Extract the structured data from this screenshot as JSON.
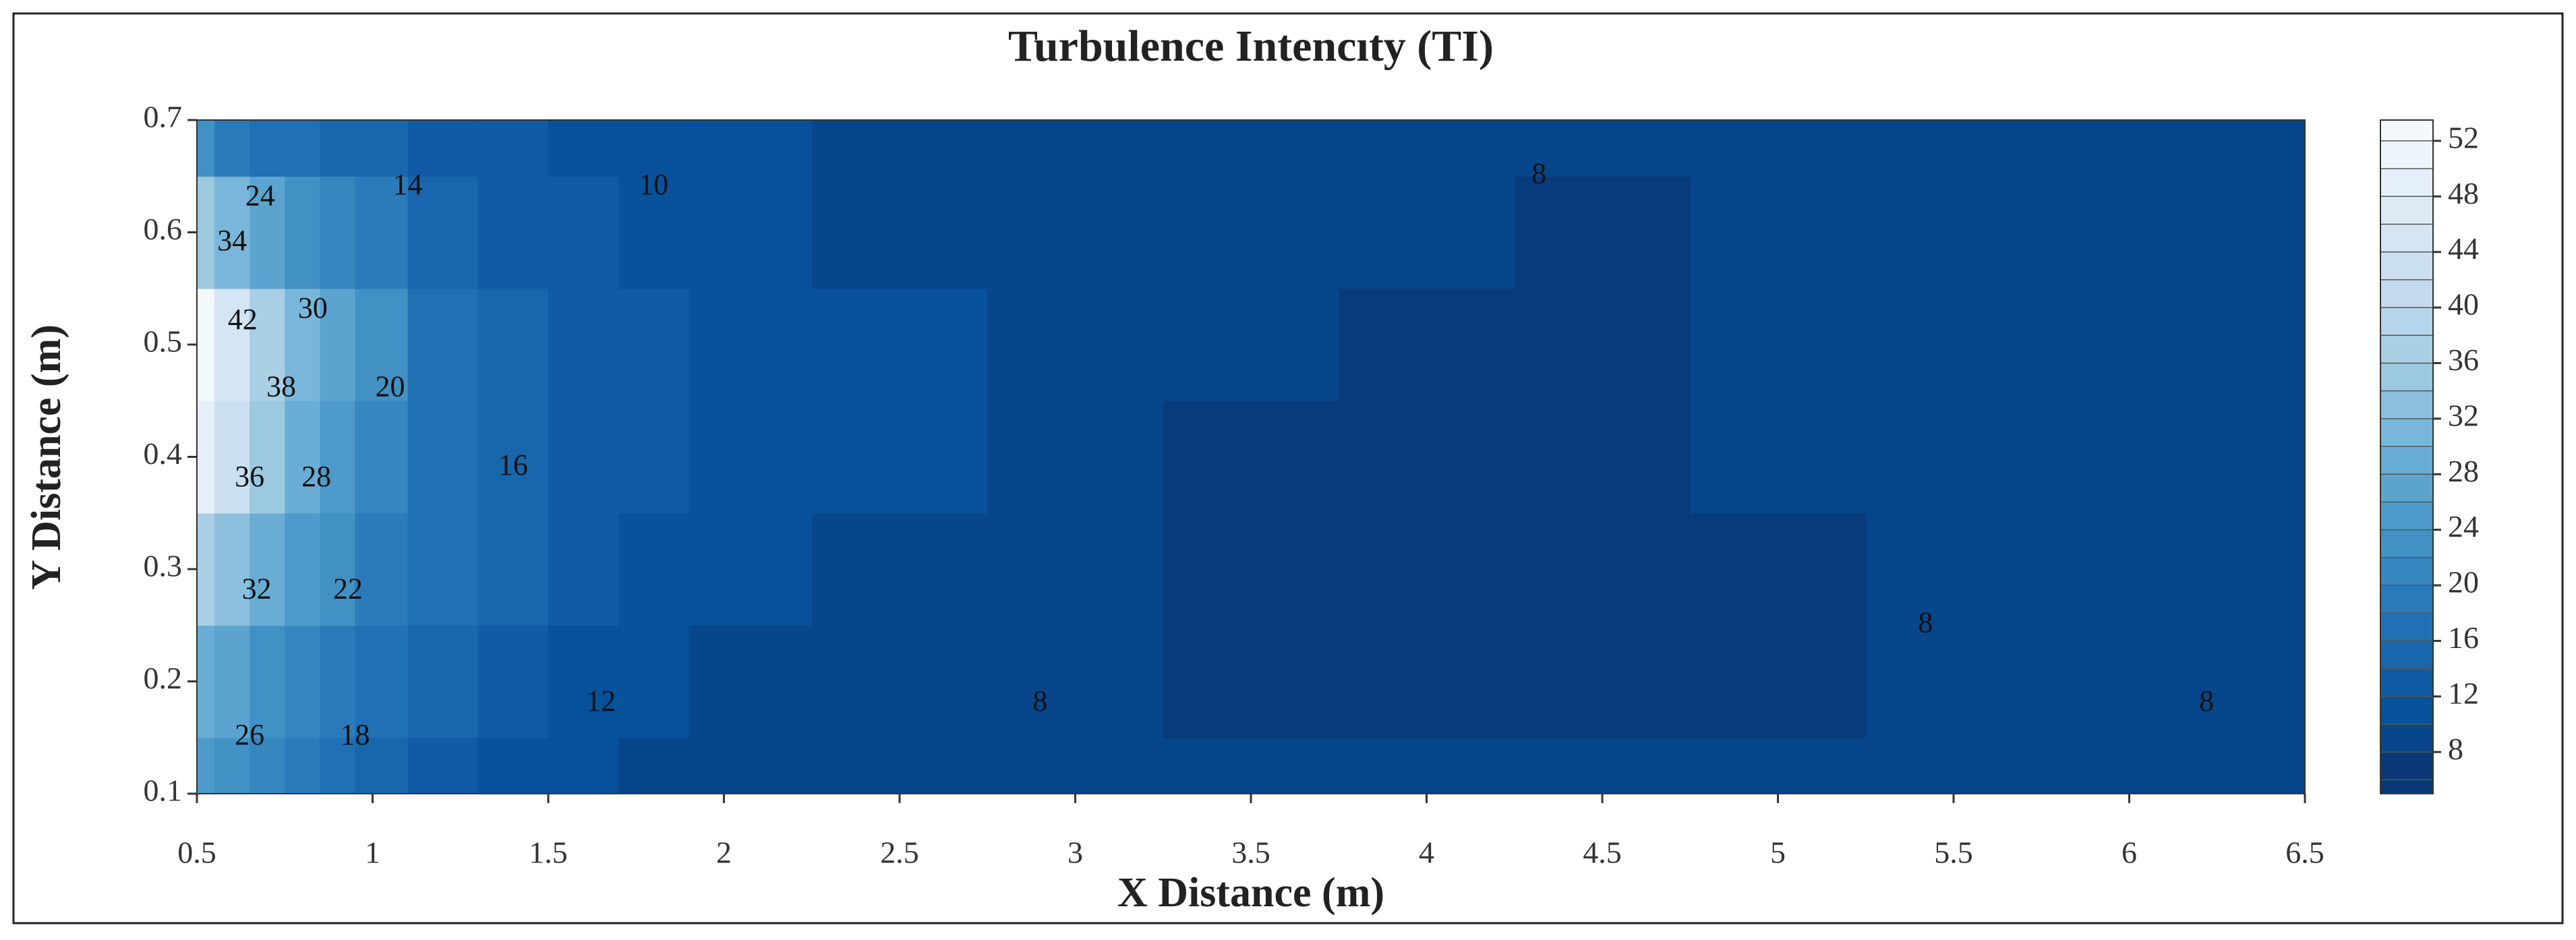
{
  "chart_data": {
    "type": "contour",
    "title": "Turbulence Intencıty (TI)",
    "x_label": "X Distance (m)",
    "y_label": "Y Distance (m)",
    "xlim": [
      0.5,
      6.5
    ],
    "xticks": [
      0.5,
      1,
      1.5,
      2,
      2.5,
      3,
      3.5,
      4,
      4.5,
      5,
      5.5,
      6,
      6.5
    ],
    "ylim": [
      0.1,
      0.7
    ],
    "yticks": [
      0.1,
      0.2,
      0.3,
      0.4,
      0.5,
      0.6,
      0.7
    ],
    "x": [
      0.5,
      0.6,
      0.7,
      0.8,
      0.9,
      1,
      1.2,
      1.4,
      1.6,
      1.8,
      2,
      2.5,
      3,
      3.5,
      4,
      4.5,
      5,
      5.5,
      6,
      6.5
    ],
    "y": [
      0.1,
      0.2,
      0.3,
      0.4,
      0.5,
      0.6,
      0.7
    ],
    "z": [
      [
        24,
        22,
        20,
        18,
        16,
        15,
        13,
        11,
        10,
        9,
        9,
        8.5,
        8,
        8,
        8,
        8,
        8,
        8,
        8.5,
        9
      ],
      [
        28,
        26,
        22,
        20,
        18,
        16,
        14,
        12,
        11,
        10,
        9,
        9,
        8,
        7.5,
        7.5,
        7.5,
        7.5,
        8,
        8,
        9
      ],
      [
        36,
        33,
        28,
        24,
        22,
        19,
        16,
        14,
        12,
        11,
        10,
        9,
        8,
        7.5,
        7.5,
        7.5,
        7.5,
        8,
        8,
        8
      ],
      [
        48,
        42,
        34,
        28,
        25,
        21,
        17,
        15,
        13,
        12,
        11,
        10,
        8,
        7.5,
        7.5,
        7.5,
        8,
        8,
        9,
        9
      ],
      [
        52,
        44,
        36,
        30,
        26,
        22,
        17,
        15,
        13,
        12,
        11,
        10,
        8.5,
        8,
        7.5,
        7.5,
        8,
        9,
        9,
        9
      ],
      [
        34,
        30,
        26,
        23,
        20,
        18,
        15,
        13,
        12,
        11,
        10,
        9,
        9,
        9,
        8,
        7.5,
        8,
        9,
        9,
        9
      ],
      [
        22,
        19,
        17,
        16,
        15,
        14,
        13,
        12,
        11,
        10,
        10,
        9,
        9,
        9,
        8.5,
        9,
        9,
        9,
        9,
        9
      ]
    ],
    "levels": [
      6,
      8,
      10,
      12,
      14,
      16,
      18,
      20,
      22,
      24,
      26,
      28,
      30,
      32,
      34,
      36,
      38,
      40,
      42,
      44,
      46,
      48,
      50,
      52
    ],
    "zlim": [
      5,
      53.5
    ],
    "zticks": [
      8,
      12,
      16,
      20,
      24,
      28,
      32,
      36,
      40,
      44,
      48,
      52
    ],
    "colormap": [
      "#08306b",
      "#08519c",
      "#2171b5",
      "#4292c6",
      "#6baed6",
      "#9ecae1",
      "#c6dbef",
      "#deebf7",
      "#f7fbff"
    ],
    "contour_labels": [
      {
        "level": 24,
        "x": 0.68,
        "y": 0.63
      },
      {
        "level": 34,
        "x": 0.6,
        "y": 0.59
      },
      {
        "level": 42,
        "x": 0.63,
        "y": 0.52
      },
      {
        "level": 38,
        "x": 0.74,
        "y": 0.46
      },
      {
        "level": 36,
        "x": 0.65,
        "y": 0.38
      },
      {
        "level": 32,
        "x": 0.67,
        "y": 0.28
      },
      {
        "level": 26,
        "x": 0.65,
        "y": 0.15
      },
      {
        "level": 30,
        "x": 0.83,
        "y": 0.53
      },
      {
        "level": 28,
        "x": 0.84,
        "y": 0.38
      },
      {
        "level": 22,
        "x": 0.93,
        "y": 0.28
      },
      {
        "level": 18,
        "x": 0.95,
        "y": 0.15
      },
      {
        "level": 20,
        "x": 1.05,
        "y": 0.46
      },
      {
        "level": 14,
        "x": 1.1,
        "y": 0.64
      },
      {
        "level": 16,
        "x": 1.4,
        "y": 0.39
      },
      {
        "level": 10,
        "x": 1.8,
        "y": 0.64
      },
      {
        "level": 12,
        "x": 1.65,
        "y": 0.18
      },
      {
        "level": 8,
        "x": 4.32,
        "y": 0.65
      },
      {
        "level": 8,
        "x": 2.9,
        "y": 0.18
      },
      {
        "level": 8,
        "x": 5.42,
        "y": 0.25
      },
      {
        "level": 8,
        "x": 6.22,
        "y": 0.18
      }
    ]
  }
}
